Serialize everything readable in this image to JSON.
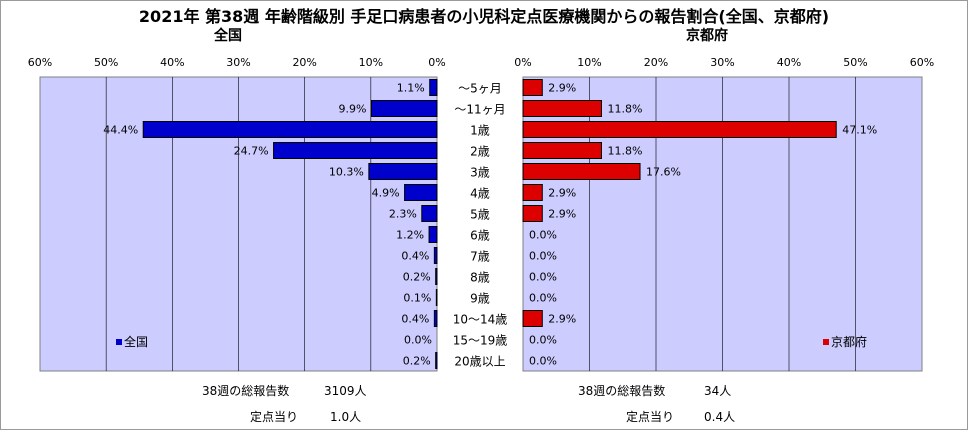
{
  "title": "2021年 第38週 年齢階級別 手足口病患者の小児科定点医療機関からの報告割合(全国、京都府)",
  "colors": {
    "plot_bg": "#ccccff",
    "national_bar": "#0000cc",
    "kyoto_bar": "#dd0000"
  },
  "chart_data": [
    {
      "type": "bar",
      "orientation": "horizontal",
      "direction": "reversed",
      "title": "全国",
      "xlim": [
        0,
        60
      ],
      "ticks": [
        "60%",
        "50%",
        "40%",
        "30%",
        "20%",
        "10%",
        "0%"
      ],
      "tick_values": [
        60,
        50,
        40,
        30,
        20,
        10,
        0
      ],
      "categories": [
        "～5ヶ月",
        "～11ヶ月",
        "1歳",
        "2歳",
        "3歳",
        "4歳",
        "5歳",
        "6歳",
        "7歳",
        "8歳",
        "9歳",
        "10～14歳",
        "15～19歳",
        "20歳以上"
      ],
      "series": [
        {
          "name": "全国",
          "values": [
            1.1,
            9.9,
            44.4,
            24.7,
            10.3,
            4.9,
            2.3,
            1.2,
            0.4,
            0.2,
            0.1,
            0.4,
            0.0,
            0.2
          ],
          "labels": [
            "1.1%",
            "9.9%",
            "44.4%",
            "24.7%",
            "10.3%",
            "4.9%",
            "2.3%",
            "1.2%",
            "0.4%",
            "0.2%",
            "0.1%",
            "0.4%",
            "0.0%",
            "0.2%"
          ]
        }
      ],
      "legend": "bottom-left",
      "grid": true
    },
    {
      "type": "bar",
      "orientation": "horizontal",
      "title": "京都府",
      "xlim": [
        0,
        60
      ],
      "ticks": [
        "0%",
        "10%",
        "20%",
        "30%",
        "40%",
        "50%",
        "60%"
      ],
      "tick_values": [
        0,
        10,
        20,
        30,
        40,
        50,
        60
      ],
      "categories": [
        "～5ヶ月",
        "～11ヶ月",
        "1歳",
        "2歳",
        "3歳",
        "4歳",
        "5歳",
        "6歳",
        "7歳",
        "8歳",
        "9歳",
        "10～14歳",
        "15～19歳",
        "20歳以上"
      ],
      "series": [
        {
          "name": "京都府",
          "values": [
            2.9,
            11.8,
            47.1,
            11.8,
            17.6,
            2.9,
            2.9,
            0.0,
            0.0,
            0.0,
            0.0,
            2.9,
            0.0,
            0.0
          ],
          "labels": [
            "2.9%",
            "11.8%",
            "47.1%",
            "11.8%",
            "17.6%",
            "2.9%",
            "2.9%",
            "0.0%",
            "0.0%",
            "0.0%",
            "0.0%",
            "2.9%",
            "0.0%",
            "0.0%"
          ]
        }
      ],
      "legend": "bottom-right",
      "grid": true
    }
  ],
  "footer": {
    "national": {
      "total_label": "38週の総報告数",
      "total_value": "3109人",
      "per_label": "定点当り",
      "per_value": "1.0人"
    },
    "kyoto": {
      "total_label": "38週の総報告数",
      "total_value": "34人",
      "per_label": "定点当り",
      "per_value": "0.4人"
    }
  }
}
